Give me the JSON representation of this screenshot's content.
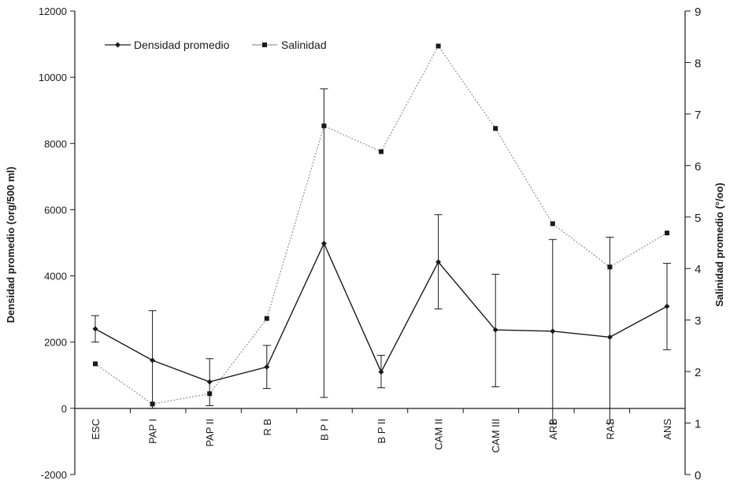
{
  "chart_data": {
    "type": "line",
    "title": "",
    "categories": [
      "ESC",
      "PAP I",
      "PAP II",
      "R B",
      "B P I",
      "B P II",
      "CAM II",
      "CAM III",
      "ARB",
      "RAS",
      "ANS"
    ],
    "ylabel": "Densidad promedio (org/500 ml)",
    "ylabel_right": "Salinidad promedio (°/oo)",
    "ylim": [
      -2000,
      12000
    ],
    "yticks": [
      "12000",
      "10000",
      "8000",
      "6000",
      "4000",
      "2000",
      "0",
      "-2000"
    ],
    "y2lim": [
      0,
      9
    ],
    "y2ticks": [
      "9",
      "8",
      "7",
      "6",
      "5",
      "4",
      "3",
      "2",
      "1",
      "0"
    ],
    "legend_position": "top-left",
    "series": [
      {
        "name": "Densidad promedio",
        "axis": "left",
        "color": "#1a1a1a",
        "marker": "diamond",
        "values": [
          2400,
          1450,
          800,
          1250,
          4980,
          1100,
          4420,
          2370,
          2330,
          2150,
          3080
        ],
        "error_low": [
          2000,
          0,
          80,
          600,
          330,
          620,
          3000,
          650,
          -450,
          -450,
          1770
        ],
        "error_high": [
          2800,
          2950,
          1500,
          1900,
          9650,
          1600,
          5850,
          4050,
          5100,
          5170,
          4380
        ]
      },
      {
        "name": "Salinidad",
        "axis": "right",
        "color": "#9a9a9a",
        "marker": "square",
        "values": [
          2.15,
          1.37,
          1.57,
          3.03,
          6.77,
          6.27,
          8.32,
          6.72,
          4.87,
          4.03,
          4.69
        ]
      }
    ]
  }
}
